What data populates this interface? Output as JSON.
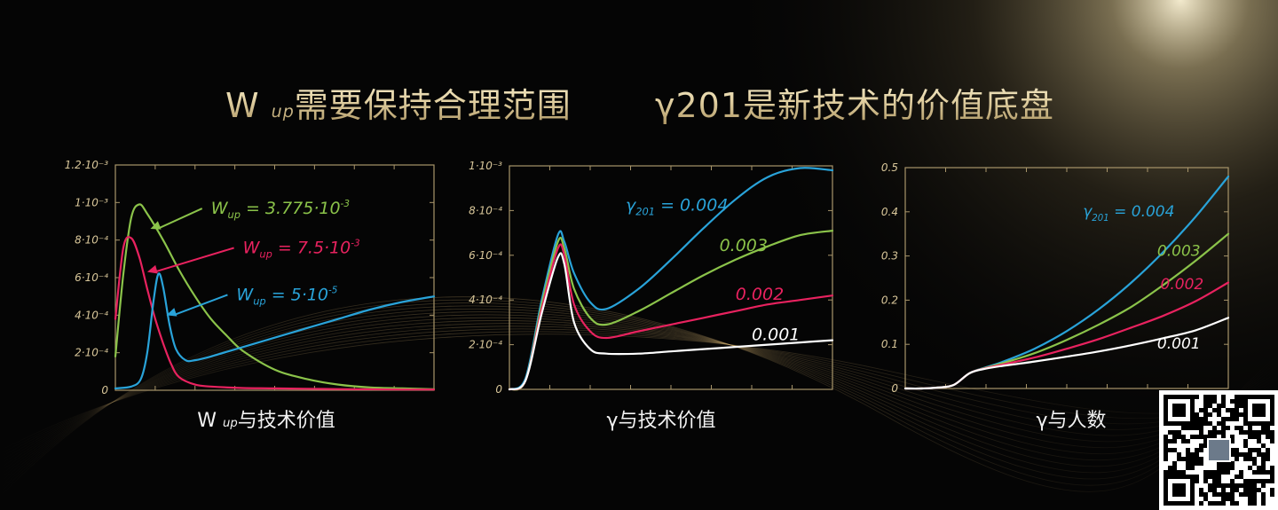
{
  "headline": {
    "left_main": "W ",
    "left_sub": "up",
    "left_rest": "需要保持合理范围",
    "right": "γ201是新技术的价值底盘"
  },
  "captions": {
    "chart1_main": "W ",
    "chart1_sub": "up",
    "chart1_rest": "与技术价值",
    "chart2": "γ与技术价值",
    "chart3": "γ与人数"
  },
  "colors": {
    "gold": "#d9c79a",
    "green": "#8bc34a",
    "red": "#e8225f",
    "blue": "#29a3d9",
    "white": "#ffffff",
    "frame": "#a8956a"
  },
  "chart_data": [
    {
      "type": "line",
      "ylim": [
        0,
        0.0012
      ],
      "xlim": [
        0,
        10
      ],
      "ytick_labels": [
        "0",
        "2·10⁻⁴",
        "4·10⁻⁴",
        "6·10⁻⁴",
        "8·10⁻⁴",
        "1·10⁻³",
        "1.2·10⁻³"
      ],
      "ytick_values": [
        0,
        0.0002,
        0.0004,
        0.0006,
        0.0008,
        0.001,
        0.0012
      ],
      "series": [
        {
          "name_main": "W",
          "name_sub": "up",
          "name_value": "= 3.775·10",
          "name_exp": "-3",
          "color": "#8bc34a",
          "x": [
            0,
            0.25,
            0.5,
            0.75,
            1,
            1.5,
            2,
            2.5,
            3,
            3.5,
            4,
            5,
            6,
            7,
            8,
            9,
            10
          ],
          "y": [
            0.00018,
            0.00062,
            0.00092,
            0.00099,
            0.00094,
            0.0008,
            0.00064,
            0.0005,
            0.00038,
            0.00029,
            0.00021,
            0.00011,
            6e-05,
            3e-05,
            1.5e-05,
            1e-05,
            5e-06
          ],
          "label_x": 3.0,
          "label_y": 0.00094,
          "arrow_to_x": 1.1,
          "arrow_to_y": 0.00086
        },
        {
          "name_main": "W",
          "name_sub": "up",
          "name_value": "= 7.5·10",
          "name_exp": "-3",
          "color": "#e8225f",
          "x": [
            0,
            0.25,
            0.5,
            0.75,
            1,
            1.25,
            1.5,
            1.75,
            2,
            2.5,
            3,
            4,
            5,
            6,
            7,
            8,
            9,
            10
          ],
          "y": [
            0.00038,
            0.00076,
            0.00081,
            0.00071,
            0.00054,
            0.00038,
            0.00025,
            0.00014,
            7e-05,
            3e-05,
            2e-05,
            1.2e-05,
            1e-05,
            8e-06,
            6e-06,
            5e-06,
            4e-06,
            4e-06
          ],
          "label_x": 4.0,
          "label_y": 0.00073,
          "arrow_to_x": 1.0,
          "arrow_to_y": 0.00063
        },
        {
          "name_main": "W",
          "name_sub": "up",
          "name_value": "= 5·10",
          "name_exp": "-5",
          "color": "#29a3d9",
          "x": [
            0,
            0.5,
            0.8,
            1,
            1.2,
            1.35,
            1.5,
            1.7,
            1.9,
            2.2,
            2.5,
            3,
            4,
            5,
            6,
            7,
            8,
            9,
            10
          ],
          "y": [
            1e-05,
            2e-05,
            6e-05,
            0.0002,
            0.00048,
            0.00062,
            0.00055,
            0.00035,
            0.00022,
            0.00016,
            0.00016,
            0.00018,
            0.00023,
            0.00028,
            0.00033,
            0.00038,
            0.00043,
            0.00047,
            0.0005
          ],
          "label_x": 3.8,
          "label_y": 0.00048,
          "arrow_to_x": 1.6,
          "arrow_to_y": 0.0004
        }
      ]
    },
    {
      "type": "line",
      "ylim": [
        0,
        0.001
      ],
      "xlim": [
        0,
        10
      ],
      "ytick_labels": [
        "0",
        "2·10⁻⁴",
        "4·10⁻⁴",
        "6·10⁻⁴",
        "8·10⁻⁴",
        "1·10⁻³"
      ],
      "ytick_values": [
        0,
        0.0002,
        0.0004,
        0.0006,
        0.0008,
        0.001
      ],
      "series": [
        {
          "name": "γ201 = 0.004",
          "name_main": "γ",
          "name_sub": "201",
          "name_value": " = 0.004",
          "color": "#29a3d9",
          "x": [
            0,
            0.5,
            1,
            1.5,
            1.7,
            2,
            2.5,
            3,
            4,
            5,
            6,
            7,
            8,
            9,
            10
          ],
          "y": [
            0,
            5e-05,
            0.0004,
            0.00069,
            0.00066,
            0.00052,
            0.00039,
            0.00036,
            0.00045,
            0.00058,
            0.00072,
            0.00085,
            0.00095,
            0.00099,
            0.00098
          ],
          "label_x": 3.6,
          "label_y": 0.0008
        },
        {
          "name": "0.003",
          "color": "#8bc34a",
          "x": [
            0,
            0.5,
            1,
            1.5,
            1.7,
            2,
            2.5,
            3,
            4,
            5,
            6,
            7,
            8,
            9,
            10
          ],
          "y": [
            0,
            4e-05,
            0.00038,
            0.00066,
            0.00063,
            0.00045,
            0.00032,
            0.00029,
            0.00035,
            0.00043,
            0.00051,
            0.00058,
            0.00064,
            0.00069,
            0.00071
          ],
          "label_x": 6.5,
          "label_y": 0.00062
        },
        {
          "name": "0.002",
          "color": "#e8225f",
          "x": [
            0,
            0.5,
            1,
            1.5,
            1.7,
            2,
            2.5,
            3,
            4,
            5,
            6,
            7,
            8,
            9,
            10
          ],
          "y": [
            0,
            4e-05,
            0.00036,
            0.00063,
            0.0006,
            0.00038,
            0.00026,
            0.00023,
            0.00026,
            0.00029,
            0.00032,
            0.00035,
            0.00038,
            0.0004,
            0.00042
          ],
          "label_x": 7.0,
          "label_y": 0.0004
        },
        {
          "name": "0.001",
          "color": "#ffffff",
          "x": [
            0,
            0.5,
            1,
            1.5,
            1.7,
            2,
            2.5,
            3,
            4,
            5,
            6,
            7,
            8,
            9,
            10
          ],
          "y": [
            0,
            4e-05,
            0.00034,
            0.00059,
            0.00056,
            0.0003,
            0.00018,
            0.00016,
            0.00016,
            0.00017,
            0.00018,
            0.00019,
            0.0002,
            0.00021,
            0.00022
          ],
          "label_x": 7.5,
          "label_y": 0.00022
        }
      ]
    },
    {
      "type": "line",
      "ylim": [
        0,
        0.5
      ],
      "xlim": [
        0,
        10
      ],
      "ytick_labels": [
        "0",
        "0.1",
        "0.2",
        "0.3",
        "0.4",
        "0.5"
      ],
      "ytick_values": [
        0,
        0.1,
        0.2,
        0.3,
        0.4,
        0.5
      ],
      "series": [
        {
          "name": "γ201 = 0.004",
          "name_main": "γ",
          "name_sub": "201",
          "name_value": " = 0.004",
          "color": "#29a3d9",
          "x": [
            0,
            0.5,
            1,
            1.5,
            2,
            2.5,
            3,
            4,
            5,
            6,
            7,
            8,
            9,
            10
          ],
          "y": [
            0,
            0,
            0.002,
            0.008,
            0.035,
            0.048,
            0.06,
            0.09,
            0.13,
            0.18,
            0.24,
            0.31,
            0.39,
            0.48
          ],
          "label_x": 5.5,
          "label_y": 0.39
        },
        {
          "name": "0.003",
          "color": "#8bc34a",
          "x": [
            0,
            0.5,
            1,
            1.5,
            2,
            2.5,
            3,
            4,
            5,
            6,
            7,
            8,
            9,
            10
          ],
          "y": [
            0,
            0,
            0.002,
            0.008,
            0.035,
            0.047,
            0.057,
            0.08,
            0.11,
            0.145,
            0.185,
            0.235,
            0.29,
            0.35
          ],
          "label_x": 7.8,
          "label_y": 0.3
        },
        {
          "name": "0.002",
          "color": "#e8225f",
          "x": [
            0,
            0.5,
            1,
            1.5,
            2,
            2.5,
            3,
            4,
            5,
            6,
            7,
            8,
            9,
            10
          ],
          "y": [
            0,
            0,
            0.002,
            0.008,
            0.035,
            0.046,
            0.054,
            0.07,
            0.09,
            0.112,
            0.138,
            0.165,
            0.198,
            0.24
          ],
          "label_x": 7.9,
          "label_y": 0.225
        },
        {
          "name": "0.001",
          "color": "#ffffff",
          "x": [
            0,
            0.5,
            1,
            1.5,
            2,
            2.5,
            3,
            4,
            5,
            6,
            7,
            8,
            9,
            10
          ],
          "y": [
            0,
            0,
            0.002,
            0.008,
            0.035,
            0.045,
            0.051,
            0.061,
            0.072,
            0.084,
            0.098,
            0.114,
            0.132,
            0.16
          ],
          "label_x": 7.8,
          "label_y": 0.09
        }
      ]
    }
  ]
}
